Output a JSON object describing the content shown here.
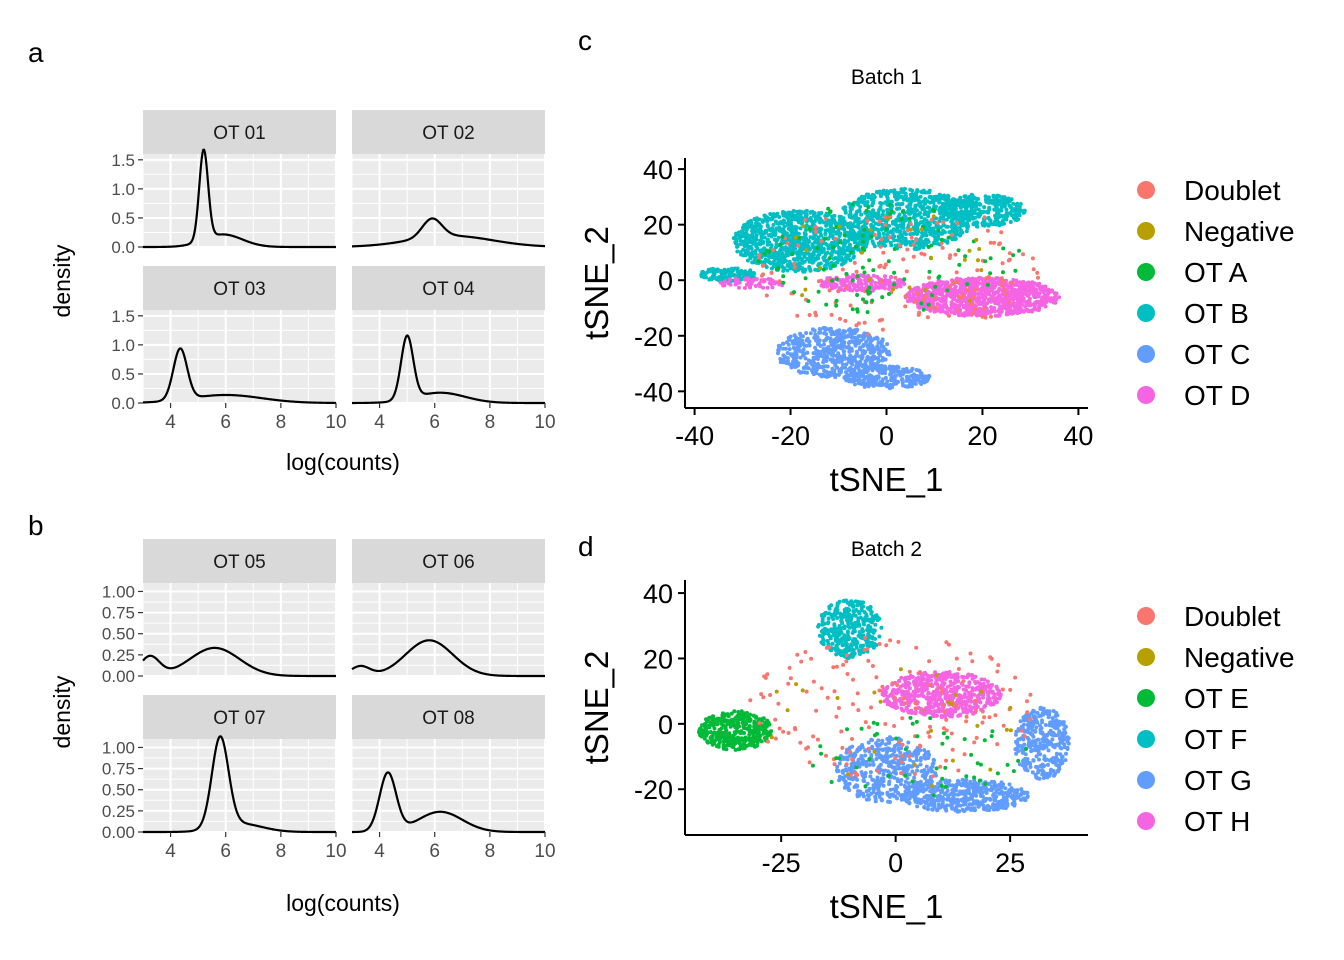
{
  "figure": {
    "panel_labels": {
      "a": "a",
      "b": "b",
      "c": "c",
      "d": "d"
    }
  },
  "chart_data": [
    {
      "panel": "a",
      "type": "line",
      "subtype": "density (faceted)",
      "xlabel": "log(counts)",
      "ylabel": "density",
      "xlim": [
        3,
        10
      ],
      "ylim": [
        0,
        1.6
      ],
      "x_ticks": [
        4,
        6,
        8,
        10
      ],
      "y_ticks": [
        0.0,
        0.5,
        1.0,
        1.5
      ],
      "y_tick_labels": [
        "0.0",
        "0.5",
        "1.0",
        "1.5"
      ],
      "grid": true,
      "facets": [
        {
          "name": "OT 01",
          "peaks": [
            {
              "mu": 5.2,
              "sd": 0.16,
              "w": 0.62
            },
            {
              "mu": 5.9,
              "sd": 0.7,
              "w": 0.38
            }
          ]
        },
        {
          "name": "OT 02",
          "peaks": [
            {
              "mu": 5.9,
              "sd": 0.35,
              "w": 0.28
            },
            {
              "mu": 6.6,
              "sd": 1.5,
              "w": 0.72
            }
          ]
        },
        {
          "name": "OT 03",
          "peaks": [
            {
              "mu": 4.35,
              "sd": 0.25,
              "w": 0.55
            },
            {
              "mu": 6.0,
              "sd": 1.3,
              "w": 0.45
            }
          ]
        },
        {
          "name": "OT 04",
          "peaks": [
            {
              "mu": 5.0,
              "sd": 0.22,
              "w": 0.6
            },
            {
              "mu": 6.2,
              "sd": 0.9,
              "w": 0.4
            }
          ]
        }
      ]
    },
    {
      "panel": "b",
      "type": "line",
      "subtype": "density (faceted)",
      "xlabel": "log(counts)",
      "ylabel": "density",
      "xlim": [
        3,
        10
      ],
      "ylim": [
        0,
        1.1
      ],
      "x_ticks": [
        4,
        6,
        8,
        10
      ],
      "y_ticks": [
        0.0,
        0.25,
        0.5,
        0.75,
        1.0
      ],
      "y_tick_labels": [
        "0.00",
        "0.25",
        "0.50",
        "0.75",
        "1.00"
      ],
      "grid": true,
      "facets": [
        {
          "name": "OT 05",
          "peaks": [
            {
              "mu": 3.25,
              "sd": 0.35,
              "w": 0.2
            },
            {
              "mu": 5.6,
              "sd": 0.9,
              "w": 0.75
            }
          ]
        },
        {
          "name": "OT 06",
          "peaks": [
            {
              "mu": 3.3,
              "sd": 0.35,
              "w": 0.1
            },
            {
              "mu": 5.8,
              "sd": 0.85,
              "w": 0.9
            }
          ]
        },
        {
          "name": "OT 07",
          "peaks": [
            {
              "mu": 5.8,
              "sd": 0.3,
              "w": 0.8
            },
            {
              "mu": 6.5,
              "sd": 0.8,
              "w": 0.2
            }
          ]
        },
        {
          "name": "OT 08",
          "peaks": [
            {
              "mu": 4.3,
              "sd": 0.3,
              "w": 0.52
            },
            {
              "mu": 6.2,
              "sd": 0.8,
              "w": 0.48
            }
          ]
        }
      ]
    },
    {
      "panel": "c",
      "type": "scatter",
      "title": "Batch 1",
      "xlabel": "tSNE_1",
      "ylabel": "tSNE_2",
      "xlim": [
        -42,
        42
      ],
      "ylim": [
        -46,
        44
      ],
      "x_ticks": [
        -40,
        -20,
        0,
        20,
        40
      ],
      "y_ticks": [
        -40,
        -20,
        0,
        20,
        40
      ],
      "legend_position": "right",
      "series": [
        {
          "name": "Doublet",
          "color": "#F8766D"
        },
        {
          "name": "Negative",
          "color": "#B79F00"
        },
        {
          "name": "OT A",
          "color": "#00BA38"
        },
        {
          "name": "OT B",
          "color": "#00BFC4"
        },
        {
          "name": "OT C",
          "color": "#619CFF"
        },
        {
          "name": "OT D",
          "color": "#F564E3"
        }
      ],
      "clusters": [
        {
          "series": "OT B",
          "cx": -18,
          "cy": 14,
          "rx": 14,
          "ry": 11,
          "n": 900
        },
        {
          "series": "OT B",
          "cx": 4,
          "cy": 22,
          "rx": 14,
          "ry": 11,
          "n": 750
        },
        {
          "series": "OT B",
          "cx": 20,
          "cy": 25,
          "rx": 9,
          "ry": 6,
          "n": 300
        },
        {
          "series": "OT B",
          "cx": -33,
          "cy": 2,
          "rx": 6,
          "ry": 2.5,
          "n": 120
        },
        {
          "series": "OT D",
          "cx": 20,
          "cy": -6,
          "rx": 16,
          "ry": 7,
          "n": 900
        },
        {
          "series": "OT D",
          "cx": -5,
          "cy": -1,
          "rx": 9,
          "ry": 3,
          "n": 180
        },
        {
          "series": "OT D",
          "cx": -28,
          "cy": -1,
          "rx": 7,
          "ry": 2,
          "n": 60
        },
        {
          "series": "OT C",
          "cx": -11,
          "cy": -26,
          "rx": 12,
          "ry": 9,
          "n": 550
        },
        {
          "series": "OT C",
          "cx": 0,
          "cy": -35,
          "rx": 9,
          "ry": 4,
          "n": 250
        },
        {
          "series": "Doublet",
          "cx": 2,
          "cy": 4,
          "rx": 30,
          "ry": 24,
          "n": 150
        },
        {
          "series": "OT A",
          "cx": 0,
          "cy": 8,
          "rx": 28,
          "ry": 20,
          "n": 110
        },
        {
          "series": "Negative",
          "cx": 0,
          "cy": 5,
          "rx": 28,
          "ry": 20,
          "n": 25
        }
      ]
    },
    {
      "panel": "d",
      "type": "scatter",
      "title": "Batch 2",
      "xlabel": "tSNE_1",
      "ylabel": "tSNE_2",
      "xlim": [
        -46,
        42
      ],
      "ylim": [
        -34,
        44
      ],
      "x_ticks": [
        -25,
        0,
        25
      ],
      "y_ticks": [
        -20,
        0,
        20,
        40
      ],
      "legend_position": "right",
      "series": [
        {
          "name": "Doublet",
          "color": "#F8766D"
        },
        {
          "name": "Negative",
          "color": "#B79F00"
        },
        {
          "name": "OT E",
          "color": "#00BA38"
        },
        {
          "name": "OT F",
          "color": "#00BFC4"
        },
        {
          "name": "OT G",
          "color": "#619CFF"
        },
        {
          "name": "OT H",
          "color": "#F564E3"
        }
      ],
      "clusters": [
        {
          "series": "OT F",
          "cx": -10,
          "cy": 29,
          "rx": 7,
          "ry": 9,
          "n": 350
        },
        {
          "series": "OT H",
          "cx": 10,
          "cy": 9,
          "rx": 13,
          "ry": 7,
          "n": 550
        },
        {
          "series": "OT E",
          "cx": -35,
          "cy": -2,
          "rx": 8,
          "ry": 6,
          "n": 380
        },
        {
          "series": "OT G",
          "cx": -2,
          "cy": -14,
          "rx": 11,
          "ry": 10,
          "n": 450
        },
        {
          "series": "OT G",
          "cx": 15,
          "cy": -22,
          "rx": 14,
          "ry": 5,
          "n": 450
        },
        {
          "series": "OT G",
          "cx": 32,
          "cy": -6,
          "rx": 6,
          "ry": 11,
          "n": 330
        },
        {
          "series": "Doublet",
          "cx": 0,
          "cy": 5,
          "rx": 32,
          "ry": 22,
          "n": 160
        },
        {
          "series": "OT E",
          "cx": 5,
          "cy": -10,
          "rx": 25,
          "ry": 12,
          "n": 50
        },
        {
          "series": "Negative",
          "cx": 0,
          "cy": 0,
          "rx": 30,
          "ry": 20,
          "n": 25
        }
      ]
    }
  ]
}
